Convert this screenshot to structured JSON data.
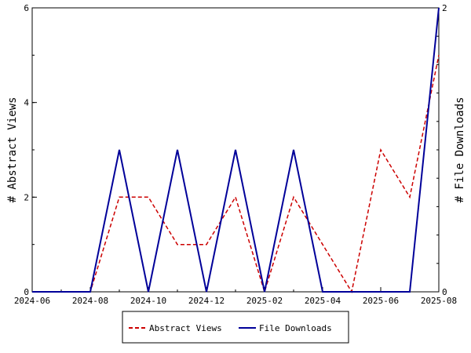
{
  "chart_data": {
    "type": "line",
    "x": [
      "2024-06",
      "2024-07",
      "2024-08",
      "2024-09",
      "2024-10",
      "2024-11",
      "2024-12",
      "2025-01",
      "2025-02",
      "2025-03",
      "2025-04",
      "2025-05",
      "2025-06",
      "2025-07",
      "2025-08"
    ],
    "x_tick_labels": [
      "2024-06",
      "2024-08",
      "2024-10",
      "2024-12",
      "2025-02",
      "2025-04",
      "2025-06",
      "2025-08"
    ],
    "series": [
      {
        "name": "Abstract Views",
        "axis": "left",
        "color": "#cc0000",
        "dash": "dashed",
        "values": [
          0,
          0,
          0,
          2,
          2,
          1,
          1,
          2,
          0,
          2,
          1,
          0,
          3,
          2,
          5
        ]
      },
      {
        "name": "File Downloads",
        "axis": "right",
        "color": "#000099",
        "dash": "solid",
        "values": [
          0,
          0,
          0,
          1,
          0,
          1,
          0,
          1,
          0,
          1,
          0,
          0,
          0,
          0,
          2
        ]
      }
    ],
    "ylabel_left": "# Abstract Views",
    "ylabel_right": "# File Downloads",
    "ylim_left": [
      0,
      6
    ],
    "ylim_right": [
      0,
      2
    ],
    "yticks_left": [
      "0",
      "2",
      "4",
      "6"
    ],
    "yticks_right": [
      "0",
      "2"
    ],
    "grid": false,
    "legend_position": "bottom"
  }
}
